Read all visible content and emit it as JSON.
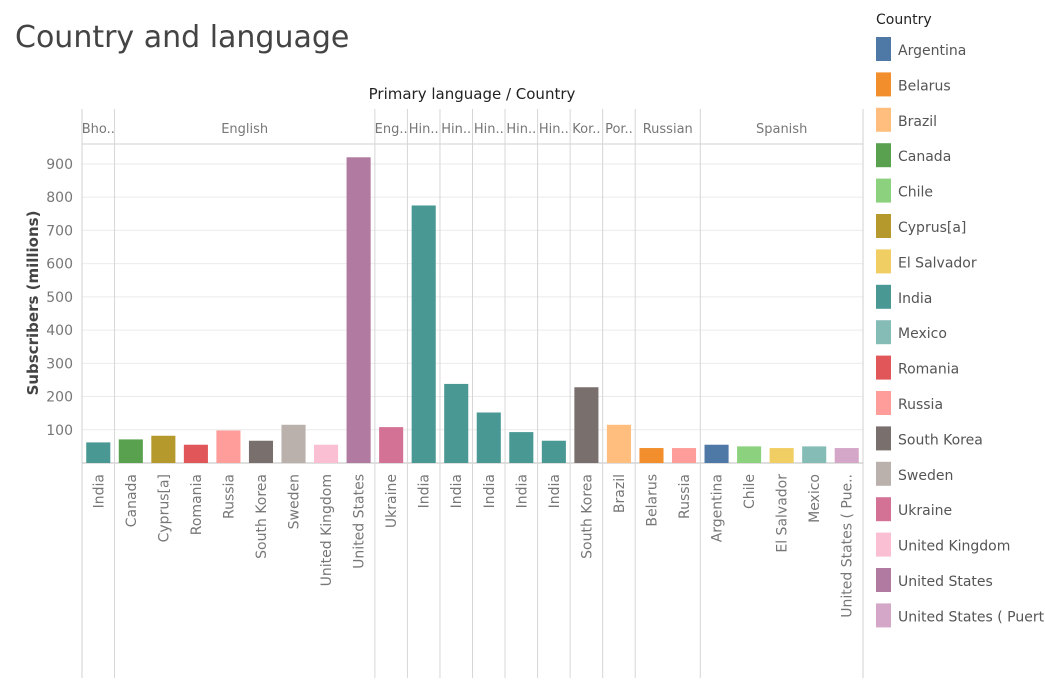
{
  "chart_data": {
    "type": "bar",
    "title": "Country and language",
    "column_header": "Primary language  /  Country",
    "ylabel": "Subscribers (millions)",
    "ylim": [
      0,
      960
    ],
    "yticks": [
      100,
      200,
      300,
      400,
      500,
      600,
      700,
      800,
      900
    ],
    "grid": true,
    "legend_title": "Country",
    "legend_position": "right",
    "colors": {
      "Argentina": "#4e79a7",
      "Belarus": "#f28e2b",
      "Brazil": "#ffbe7d",
      "Canada": "#59a14f",
      "Chile": "#8cd17d",
      "Cyprus[a]": "#b6992d",
      "El Salvador": "#f1ce63",
      "India": "#499894",
      "Mexico": "#86bcb6",
      "Romania": "#e15759",
      "Russia": "#ff9d9a",
      "South Korea": "#79706e",
      "Sweden": "#bab0ac",
      "Ukraine": "#d37295",
      "United Kingdom": "#fabfd2",
      "United States": "#b07aa1",
      "United States ( Puerto Rico)": "#d4a6c8"
    },
    "legend_entries": [
      {
        "name": "Argentina",
        "label": "Argentina"
      },
      {
        "name": "Belarus",
        "label": "Belarus"
      },
      {
        "name": "Brazil",
        "label": "Brazil"
      },
      {
        "name": "Canada",
        "label": "Canada"
      },
      {
        "name": "Chile",
        "label": "Chile"
      },
      {
        "name": "Cyprus[a]",
        "label": "Cyprus[a]"
      },
      {
        "name": "El Salvador",
        "label": "El Salvador"
      },
      {
        "name": "India",
        "label": "India"
      },
      {
        "name": "Mexico",
        "label": "Mexico"
      },
      {
        "name": "Romania",
        "label": "Romania"
      },
      {
        "name": "Russia",
        "label": "Russia"
      },
      {
        "name": "South Korea",
        "label": "South Korea"
      },
      {
        "name": "Sweden",
        "label": "Sweden"
      },
      {
        "name": "Ukraine",
        "label": "Ukraine"
      },
      {
        "name": "United Kingdom",
        "label": "United Kingdom"
      },
      {
        "name": "United States",
        "label": "United States"
      },
      {
        "name": "United States ( Puerto Rico)",
        "label": "United States ( Puert.."
      }
    ],
    "panes": [
      {
        "label": "Bho..",
        "bars": [
          {
            "country": "India",
            "label": "India",
            "value": 62
          }
        ]
      },
      {
        "label": "English",
        "bars": [
          {
            "country": "Canada",
            "label": "Canada",
            "value": 71
          },
          {
            "country": "Cyprus[a]",
            "label": "Cyprus[a]",
            "value": 82
          },
          {
            "country": "Romania",
            "label": "Romania",
            "value": 55
          },
          {
            "country": "Russia",
            "label": "Russia",
            "value": 98
          },
          {
            "country": "South Korea",
            "label": "South Korea",
            "value": 67
          },
          {
            "country": "Sweden",
            "label": "Sweden",
            "value": 115
          },
          {
            "country": "United Kingdom",
            "label": "United Kingdom",
            "value": 55
          },
          {
            "country": "United States",
            "label": "United States",
            "value": 920
          }
        ]
      },
      {
        "label": "Eng..",
        "bars": [
          {
            "country": "Ukraine",
            "label": "Ukraine",
            "value": 108
          }
        ]
      },
      {
        "label": "Hin..",
        "bars": [
          {
            "country": "India",
            "label": "India",
            "value": 775
          }
        ]
      },
      {
        "label": "Hin..",
        "bars": [
          {
            "country": "India",
            "label": "India",
            "value": 238
          }
        ]
      },
      {
        "label": "Hin..",
        "bars": [
          {
            "country": "India",
            "label": "India",
            "value": 152
          }
        ]
      },
      {
        "label": "Hin..",
        "bars": [
          {
            "country": "India",
            "label": "India",
            "value": 93
          }
        ]
      },
      {
        "label": "Hin..",
        "bars": [
          {
            "country": "India",
            "label": "India",
            "value": 67
          }
        ]
      },
      {
        "label": "Kor..",
        "bars": [
          {
            "country": "South Korea",
            "label": "South Korea",
            "value": 228
          }
        ]
      },
      {
        "label": "Por..",
        "bars": [
          {
            "country": "Brazil",
            "label": "Brazil",
            "value": 115
          }
        ]
      },
      {
        "label": "Russian",
        "bars": [
          {
            "country": "Belarus",
            "label": "Belarus",
            "value": 45
          },
          {
            "country": "Russia",
            "label": "Russia",
            "value": 45
          }
        ]
      },
      {
        "label": "Spanish",
        "bars": [
          {
            "country": "Argentina",
            "label": "Argentina",
            "value": 55
          },
          {
            "country": "Chile",
            "label": "Chile",
            "value": 50
          },
          {
            "country": "El Salvador",
            "label": "El Salvador",
            "value": 45
          },
          {
            "country": "Mexico",
            "label": "Mexico",
            "value": 50
          },
          {
            "country": "United States ( Puerto Rico)",
            "label": "United States ( Pue..",
            "value": 45
          }
        ]
      }
    ]
  }
}
